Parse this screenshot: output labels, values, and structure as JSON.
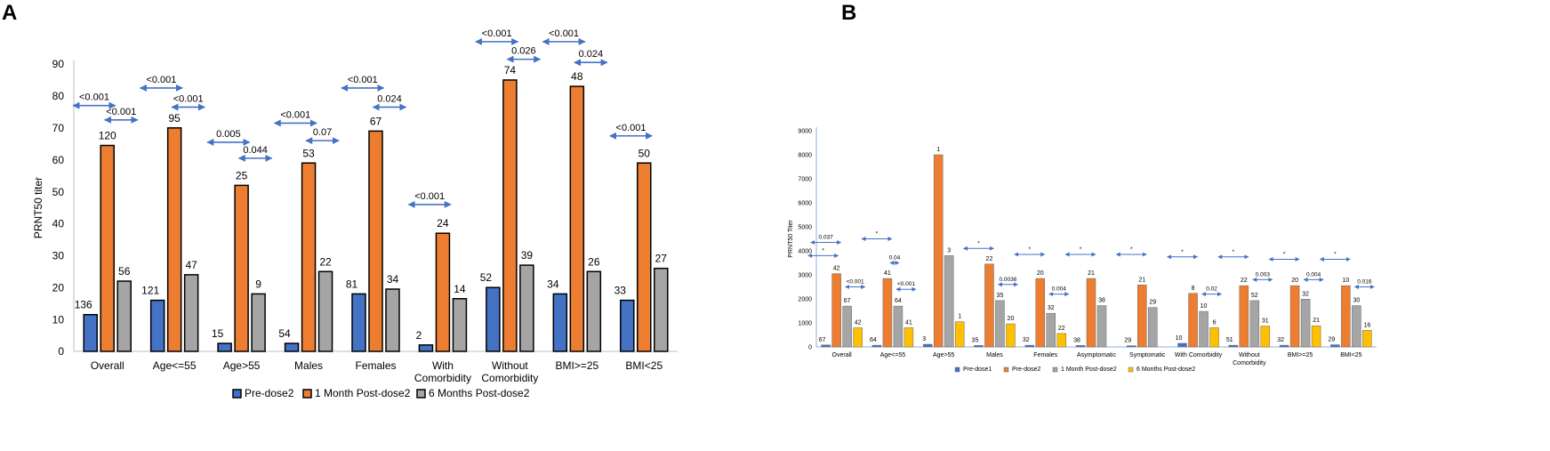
{
  "colors": {
    "pre_dose": "#4472c4",
    "one_month": "#ed7d31",
    "six_months": "#a5a5a5",
    "pre_dose1": "#4472c4",
    "pre_dose2": "#ed7d31",
    "one_month_b": "#a5a5a5",
    "six_months_b": "#ffc000",
    "arrow": "#4472c4"
  },
  "chart_data": [
    {
      "panel": "A",
      "type": "bar",
      "title": "",
      "xlabel": "",
      "ylabel": "PRNT50 titer",
      "ylim": [
        0,
        90
      ],
      "yticks": [
        0,
        10,
        20,
        30,
        40,
        50,
        60,
        70,
        80,
        90
      ],
      "grid": false,
      "legend": "bottom",
      "categories": [
        "Overall",
        "Age<=55",
        "Age>55",
        "Males",
        "Females",
        "With\nComorbidity",
        "Without\nComorbidity",
        "BMI>=25",
        "BMI<25"
      ],
      "series": [
        {
          "name": "Pre-dose2",
          "values": [
            11.5,
            16,
            2.5,
            2.5,
            18,
            2,
            20,
            18,
            16
          ],
          "labels": [
            "136",
            "121",
            "15",
            "54",
            "81",
            "2",
            "52",
            "34",
            "33"
          ]
        },
        {
          "name": "1 Month Post-dose2",
          "values": [
            64.5,
            70,
            52,
            59,
            69,
            37,
            85,
            83,
            59
          ],
          "labels": [
            "120",
            "95",
            "25",
            "53",
            "67",
            "24",
            "74",
            "48",
            "50"
          ]
        },
        {
          "name": "6 Months Post-dose2",
          "values": [
            22,
            24,
            18,
            25,
            19.5,
            16.5,
            27,
            25,
            26
          ],
          "labels": [
            "56",
            "47",
            "9",
            "22",
            "34",
            "14",
            "39",
            "26",
            "27"
          ]
        }
      ],
      "comparisons": [
        {
          "category": 0,
          "label": "<0.001",
          "span": "pre-month",
          "y": 77
        },
        {
          "category": 0,
          "label": "<0.001",
          "span": "month-six",
          "y": 72.5
        },
        {
          "category": 1,
          "label": "<0.001",
          "span": "pre-month",
          "y": 82.5
        },
        {
          "category": 1,
          "label": "<0.001",
          "span": "month-six",
          "y": 76.5
        },
        {
          "category": 2,
          "label": "0.005",
          "span": "pre-month",
          "y": 65.5
        },
        {
          "category": 2,
          "label": "0.044",
          "span": "month-six",
          "y": 60.5
        },
        {
          "category": 3,
          "label": "<0.001",
          "span": "pre-month",
          "y": 71.5
        },
        {
          "category": 3,
          "label": "0.07",
          "span": "month-six",
          "y": 66
        },
        {
          "category": 4,
          "label": "<0.001",
          "span": "pre-month",
          "y": 82.5
        },
        {
          "category": 4,
          "label": "0.024",
          "span": "month-six",
          "y": 76.5
        },
        {
          "category": 5,
          "label": "<0.001",
          "span": "pre-month",
          "y": 46
        },
        {
          "category": 6,
          "label": "<0.001",
          "span": "pre-month",
          "y": 97
        },
        {
          "category": 6,
          "label": "0.026",
          "span": "month-six",
          "y": 91.5
        },
        {
          "category": 7,
          "label": "<0.001",
          "span": "pre-month",
          "y": 97
        },
        {
          "category": 7,
          "label": "0.024",
          "span": "month-six",
          "y": 90.5
        },
        {
          "category": 8,
          "label": "<0.001",
          "span": "pre-month",
          "y": 67.5
        }
      ]
    },
    {
      "panel": "B",
      "type": "bar",
      "title": "",
      "xlabel": "",
      "ylabel": "PRNT50 Titer",
      "ylim": [
        0,
        9000
      ],
      "yticks": [
        0,
        1000,
        2000,
        3000,
        4000,
        5000,
        6000,
        7000,
        8000,
        9000
      ],
      "grid": false,
      "legend": "bottom",
      "categories": [
        "Overall",
        "Age<=55",
        "Age>55",
        "Males",
        "Females",
        "Asymptomatic",
        "Symptomatic",
        "With Comorbidity",
        "Without\nComorbidity",
        "BMI>=25",
        "BMI<25"
      ],
      "series": [
        {
          "name": "Pre-dose1",
          "values": [
            80,
            70,
            110,
            60,
            70,
            60,
            50,
            150,
            70,
            70,
            90
          ],
          "labels": [
            "67",
            "64",
            "3",
            "35",
            "32",
            "38",
            "29",
            "10",
            "51",
            "32",
            "29"
          ]
        },
        {
          "name": "Pre-dose2",
          "values": [
            3050,
            2850,
            8000,
            3450,
            2850,
            2850,
            2580,
            2230,
            2550,
            2550,
            2550
          ],
          "labels": [
            "42",
            "41",
            "1",
            "22",
            "20",
            "21",
            "21",
            "8",
            "22",
            "20",
            "10"
          ]
        },
        {
          "name": "1 Month Post-dose2",
          "values": [
            1700,
            1700,
            3800,
            1930,
            1400,
            1720,
            1640,
            1480,
            1930,
            1990,
            1720
          ],
          "labels": [
            "67",
            "64",
            "3",
            "35",
            "32",
            "38",
            "29",
            "10",
            "52",
            "32",
            "30"
          ]
        },
        {
          "name": "6 Months Post-dose2",
          "values": [
            800,
            800,
            1050,
            960,
            560,
            null,
            null,
            800,
            870,
            880,
            690
          ],
          "labels": [
            "42",
            "41",
            "1",
            "20",
            "22",
            "",
            "",
            "6",
            "31",
            "21",
            "16"
          ]
        }
      ],
      "comparisons": [
        {
          "category": 0,
          "label": "0.037",
          "span": "p1-p2",
          "y": 4350
        },
        {
          "category": 0,
          "label": "*",
          "span": "p1-p2-low",
          "y": 3800
        },
        {
          "category": 0,
          "label": "<0.001",
          "span": "p2-6m",
          "y": 2500
        },
        {
          "category": 1,
          "label": "*",
          "span": "p1-p2",
          "y": 4500
        },
        {
          "category": 1,
          "label": "0.04",
          "span": "p2-1m",
          "y": 3500
        },
        {
          "category": 1,
          "label": "<0.001",
          "span": "p2-6m",
          "y": 2400
        },
        {
          "category": 3,
          "label": "*",
          "span": "p1-p2",
          "y": 4100
        },
        {
          "category": 3,
          "label": "0.0036",
          "span": "p2-6m",
          "y": 2600
        },
        {
          "category": 4,
          "label": "*",
          "span": "p1-p2",
          "y": 3850
        },
        {
          "category": 4,
          "label": "0.004",
          "span": "p2-6m",
          "y": 2200
        },
        {
          "category": 5,
          "label": "*",
          "span": "p1-p2",
          "y": 3850
        },
        {
          "category": 6,
          "label": "*",
          "span": "p1-p2",
          "y": 3850
        },
        {
          "category": 7,
          "label": "*",
          "span": "p1-p2",
          "y": 3750
        },
        {
          "category": 7,
          "label": "0.02",
          "span": "p2-6m",
          "y": 2200
        },
        {
          "category": 8,
          "label": "*",
          "span": "p1-p2",
          "y": 3750
        },
        {
          "category": 8,
          "label": "0.003",
          "span": "p2-6m",
          "y": 2800
        },
        {
          "category": 9,
          "label": "*",
          "span": "p1-p2",
          "y": 3650
        },
        {
          "category": 9,
          "label": "0.004",
          "span": "p2-6m",
          "y": 2800
        },
        {
          "category": 10,
          "label": "*",
          "span": "p1-p2",
          "y": 3650
        },
        {
          "category": 10,
          "label": "0.016",
          "span": "p2-6m",
          "y": 2500
        }
      ]
    }
  ],
  "panels": {
    "a_label": "A",
    "b_label": "B"
  }
}
